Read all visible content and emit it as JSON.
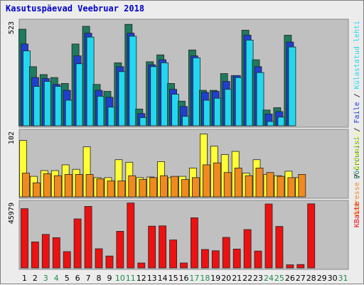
{
  "chart_data": {
    "title": "Kasutuspäevad Veebruar 2018",
    "type": "bar",
    "x": {
      "labels": [
        "1",
        "2",
        "3",
        "4",
        "5",
        "6",
        "7",
        "8",
        "9",
        "10",
        "11",
        "12",
        "13",
        "14",
        "15",
        "16",
        "17",
        "18",
        "19",
        "20",
        "21",
        "22",
        "23",
        "24",
        "25",
        "26",
        "27",
        "28",
        "29",
        "30",
        "31"
      ],
      "weekend_days": [
        "3",
        "4",
        "10",
        "11",
        "17",
        "18",
        "24",
        "25",
        "31"
      ],
      "colors": {
        "weekday": "#000000",
        "weekend": "#1f8a4a"
      }
    },
    "panels": [
      {
        "id": "top",
        "ymax_label": "523",
        "ymax": 523,
        "series": [
          {
            "name": "Pöördumisi",
            "color": "#1f7a5f",
            "values": [
              490,
              300,
              260,
              245,
              215,
              415,
              505,
              210,
              175,
              320,
              515,
              85,
              325,
              360,
              215,
              125,
              385,
              180,
              180,
              265,
              255,
              485,
              335,
              80,
              92,
              460,
              0,
              0,
              0,
              0,
              0
            ]
          },
          {
            "name": "Faile",
            "color": "#1f3fd0",
            "values": [
              415,
              245,
              240,
              210,
              180,
              355,
              470,
              180,
              145,
              300,
              470,
              62,
              310,
              335,
              185,
              98,
              355,
              170,
              175,
              225,
              255,
              460,
              300,
              60,
              72,
              425,
              0,
              0,
              0,
              0,
              0
            ]
          },
          {
            "name": "Külastatud lehti",
            "color": "#22d8f0",
            "values": [
              380,
              200,
              225,
              200,
              130,
              315,
              450,
              150,
              95,
              275,
              455,
              42,
              300,
              320,
              160,
              48,
              345,
              130,
              140,
              185,
              245,
              435,
              270,
              22,
              44,
              400,
              0,
              0,
              0,
              0,
              0
            ]
          }
        ],
        "label_parts": [
          {
            "text": "Pöördumisi",
            "color": "#1f7a5f"
          },
          {
            "text": " / ",
            "color": "#000000"
          },
          {
            "text": "Faile",
            "color": "#1f3fd0"
          },
          {
            "text": " / ",
            "color": "#000000"
          },
          {
            "text": "Külastatud lehti",
            "color": "#22d8f0"
          }
        ]
      },
      {
        "id": "middle",
        "ymax_label": "102",
        "ymax": 102,
        "series": [
          {
            "name": "Külastusi",
            "color": "#ffff33",
            "values": [
              88,
              32,
              41,
              41,
              50,
              43,
              78,
              30,
              30,
              58,
              54,
              30,
              31,
              55,
              30,
              32,
              45,
              98,
              79,
              66,
              71,
              37,
              58,
              35,
              33,
              40,
              30,
              0,
              0,
              0,
              0
            ]
          },
          {
            "name": "Aadresse",
            "color": "#f08a1f",
            "values": [
              37,
              22,
              36,
              33,
              35,
              35,
              35,
              28,
              25,
              25,
              33,
              27,
              30,
              33,
              32,
              27,
              30,
              50,
              53,
              38,
              45,
              33,
              45,
              38,
              32,
              30,
              35,
              0,
              0,
              0,
              0
            ]
          }
        ],
        "label_parts": [
          {
            "text": "Aadresse",
            "color": "#f08a1f"
          },
          {
            "text": " / ",
            "color": "#000000"
          },
          {
            "text": "Külastusi",
            "color": "#ffff33"
          }
        ]
      },
      {
        "id": "bottom",
        "ymax_label": "45979",
        "ymax": 45979,
        "series": [
          {
            "name": "KBaite",
            "color": "#ee1111",
            "values": [
              41700,
              18300,
              23600,
              21300,
              11500,
              34500,
              43300,
              13500,
              8400,
              25800,
              45700,
              3500,
              29400,
              29600,
              19700,
              3500,
              35300,
              13000,
              12100,
              21500,
              13300,
              27000,
              11900,
              45000,
              29200,
              2200,
              2400,
              45100,
              0,
              0,
              0
            ]
          }
        ],
        "label_parts": [
          {
            "text": "KBaite",
            "color": "#ee1111"
          }
        ]
      }
    ]
  }
}
